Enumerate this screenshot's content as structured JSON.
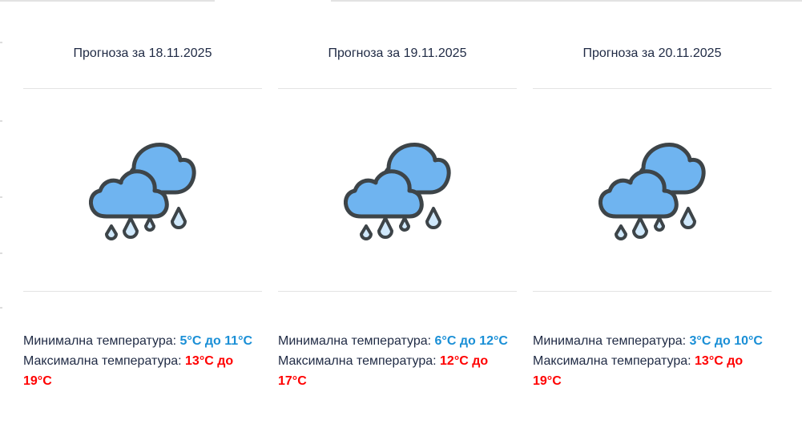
{
  "colors": {
    "min_temp": "#1a8fd6",
    "max_temp": "#ff0000",
    "cloud": "#6fb4f0",
    "outline": "#3d4448"
  },
  "labels": {
    "min": "Минимална температура:",
    "max": "Максимална температура:"
  },
  "forecasts": [
    {
      "title": "Прогноза за 18.11.2025",
      "icon": "rain-cloud-icon",
      "min_from": "5°C",
      "min_to": "11°C",
      "max_from": "13°C",
      "max_to": "19°C"
    },
    {
      "title": "Прогноза за 19.11.2025",
      "icon": "rain-cloud-icon",
      "min_from": "6°C",
      "min_to": "12°C",
      "max_from": "12°C",
      "max_to": "17°C"
    },
    {
      "title": "Прогноза за 20.11.2025",
      "icon": "rain-cloud-icon",
      "min_from": "3°C",
      "min_to": "10°C",
      "max_from": "13°C",
      "max_to": "19°C"
    }
  ],
  "conj": "до"
}
